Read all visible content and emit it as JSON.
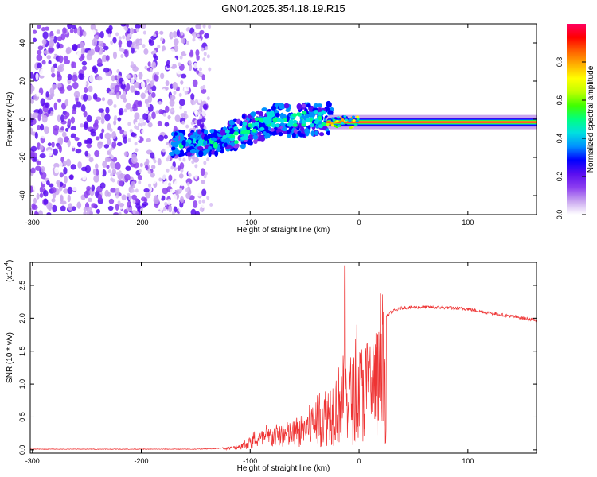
{
  "title": "GN04.2025.354.18.19.R15",
  "chart_data": [
    {
      "type": "heatmap",
      "title": "GN04.2025.354.18.19.R15",
      "xlabel": "Height of straight line (km)",
      "ylabel": "Frequency (Hz)",
      "xlim": [
        -302,
        163
      ],
      "ylim": [
        -50,
        50
      ],
      "xticks": [
        -300,
        -200,
        -100,
        0,
        100
      ],
      "yticks": [
        -40,
        -20,
        0,
        20,
        40
      ],
      "colorbar": {
        "label": "Normalized spectral amplitude",
        "range": [
          0,
          1
        ],
        "ticks": [
          0.0,
          0.2,
          0.4,
          0.6,
          0.8
        ],
        "colors": [
          "#ffffff",
          "#c9a6f0",
          "#8c3ef0",
          "#5a0ef0",
          "#0000ff",
          "#0090ff",
          "#00e0e0",
          "#00ff80",
          "#40ff00",
          "#c0ff00",
          "#ffff00",
          "#ffb000",
          "#ff6000",
          "#ff0000",
          "#ff0060"
        ]
      },
      "features": {
        "noise_region_x": [
          -302,
          -140
        ],
        "tail_region_x": [
          -172,
          -25
        ],
        "tail_frequency_trend": [
          [
            -172,
            -13
          ],
          [
            -130,
            -12
          ],
          [
            -100,
            -5
          ],
          [
            -80,
            0
          ],
          [
            -60,
            -1
          ],
          [
            -40,
            0
          ],
          [
            -25,
            0
          ]
        ],
        "carrier_region_x": [
          -30,
          163
        ],
        "carrier_frequency": -1.5,
        "carrier_peak_amplitude": 0.95
      }
    },
    {
      "type": "line",
      "xlabel": "Height of straight line (km)",
      "ylabel": "SNR (10 * v/v)",
      "y_scale_label": "(x10",
      "y_scale_exponent": "4",
      "xlim": [
        -302,
        163
      ],
      "ylim": [
        -0.05,
        2.85
      ],
      "xticks": [
        -300,
        -200,
        -100,
        0,
        100
      ],
      "yticks": [
        0.0,
        0.5,
        1.0,
        1.5,
        2.0,
        2.5
      ],
      "ytick_labels": [
        "0.0",
        "0.5",
        "1.0",
        "1.5",
        "2.0",
        "2.5"
      ],
      "series": [
        {
          "name": "SNR",
          "color": "#ee3333",
          "envelope": [
            [
              -302,
              0.01
            ],
            [
              -150,
              0.01
            ],
            [
              -130,
              0.02
            ],
            [
              -115,
              0.06
            ],
            [
              -100,
              0.2
            ],
            [
              -90,
              0.3
            ],
            [
              -80,
              0.38
            ],
            [
              -70,
              0.42
            ],
            [
              -60,
              0.45
            ],
            [
              -50,
              0.6
            ],
            [
              -40,
              0.8
            ],
            [
              -30,
              1.0
            ],
            [
              -20,
              1.25
            ],
            [
              -14,
              1.5
            ],
            [
              -10,
              1.5
            ],
            [
              -5,
              1.45
            ],
            [
              0,
              1.6
            ],
            [
              10,
              1.8
            ],
            [
              20,
              1.95
            ],
            [
              30,
              2.1
            ],
            [
              40,
              2.16
            ],
            [
              60,
              2.17
            ],
            [
              80,
              2.16
            ],
            [
              100,
              2.14
            ],
            [
              120,
              2.08
            ],
            [
              140,
              2.03
            ],
            [
              163,
              1.97
            ]
          ],
          "spike": {
            "x": -13,
            "y": 2.8
          }
        }
      ]
    }
  ]
}
